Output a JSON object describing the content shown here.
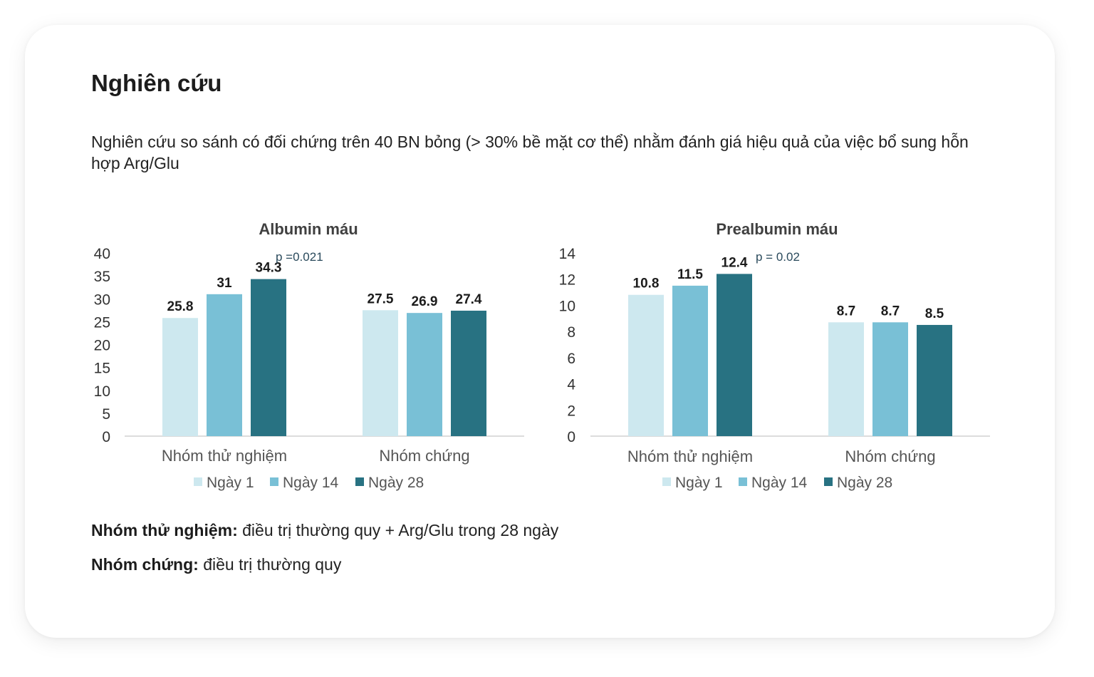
{
  "title": "Nghiên cứu",
  "description": "Nghiên cứu so sánh có đối chứng trên 40 BN bỏng (> 30% bề mặt cơ thể) nhằm đánh giá hiệu quả của việc bổ sung hỗn hợp Arg/Glu",
  "colors": {
    "day1": "#cde8ef",
    "day14": "#79c0d6",
    "day28": "#287282",
    "axis": "#d0d0d0",
    "text": "#1c1c1c",
    "tick": "#333333",
    "pval": "#2a4a5c"
  },
  "chart_data": [
    {
      "type": "bar",
      "title": "Albumin máu",
      "categories": [
        "Nhóm thử nghiệm",
        "Nhóm chứng"
      ],
      "series": [
        {
          "name": "Ngày 1",
          "values": [
            25.8,
            27.5
          ]
        },
        {
          "name": "Ngày 14",
          "values": [
            31,
            26.9
          ]
        },
        {
          "name": "Ngày 28",
          "values": [
            34.3,
            27.4
          ]
        }
      ],
      "data_labels": [
        [
          "25.8",
          "27.5"
        ],
        [
          "31",
          "26.9"
        ],
        [
          "34.3",
          "27.4"
        ]
      ],
      "ylim": [
        0,
        40
      ],
      "yticks": [
        "0",
        "5",
        "10",
        "15",
        "20",
        "25",
        "30",
        "35",
        "40"
      ],
      "annotation": "p =0.021",
      "legend": "bottom",
      "grid": false
    },
    {
      "type": "bar",
      "title": "Prealbumin máu",
      "categories": [
        "Nhóm thử nghiệm",
        "Nhóm chứng"
      ],
      "series": [
        {
          "name": "Ngày 1",
          "values": [
            10.8,
            8.7
          ]
        },
        {
          "name": "Ngày 14",
          "values": [
            11.5,
            8.7
          ]
        },
        {
          "name": "Ngày 28",
          "values": [
            12.4,
            8.5
          ]
        }
      ],
      "data_labels": [
        [
          "10.8",
          "8.7"
        ],
        [
          "11.5",
          "8.7"
        ],
        [
          "12.4",
          "8.5"
        ]
      ],
      "ylim": [
        0,
        14
      ],
      "yticks": [
        "0",
        "2",
        "4",
        "6",
        "8",
        "10",
        "12",
        "14"
      ],
      "annotation": "p = 0.02",
      "legend": "bottom",
      "grid": false
    }
  ],
  "notes": [
    {
      "label": "Nhóm thử nghiệm:",
      "text": " điều trị thường quy + Arg/Glu trong 28 ngày"
    },
    {
      "label": "Nhóm chứng:",
      "text": " điều trị thường quy"
    }
  ]
}
